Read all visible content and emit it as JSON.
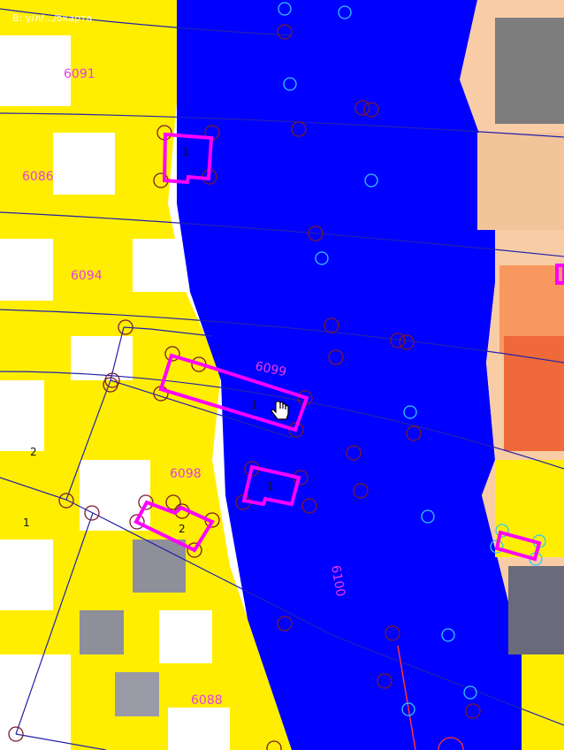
{
  "map": {
    "title": "В: у/л/.../бкарта",
    "background_colors": {
      "canvas": "#ffffff",
      "yellow": "#ffee00",
      "blue": "#0000ff",
      "orange": "#ff7a3c",
      "peach": "#f8cda6",
      "gray": "#9e9e9e"
    },
    "line_colors": {
      "boundary": "#2222aa",
      "building": "#ff00ff",
      "marker": "#7a1b2a",
      "marker_cyan": "#33c5ff",
      "road_red": "#ff3333",
      "white": "#ffffff"
    },
    "parcels": [
      {
        "id": "p6091",
        "label": "6091"
      },
      {
        "id": "p6086",
        "label": "6086"
      },
      {
        "id": "p6094",
        "label": "6094"
      },
      {
        "id": "p6099",
        "label": "6099"
      },
      {
        "id": "p6098",
        "label": "6098"
      },
      {
        "id": "p6100",
        "label": "6100"
      },
      {
        "id": "p6088",
        "label": "6088"
      }
    ],
    "building_labels": [
      {
        "id": "b1",
        "label": "1"
      },
      {
        "id": "b2",
        "label": "1"
      },
      {
        "id": "b3",
        "label": "1"
      },
      {
        "id": "b4",
        "label": "2"
      },
      {
        "id": "b5",
        "label": "2"
      },
      {
        "id": "b6",
        "label": "1"
      }
    ],
    "cursor_icon": "hand-pointer-icon"
  }
}
